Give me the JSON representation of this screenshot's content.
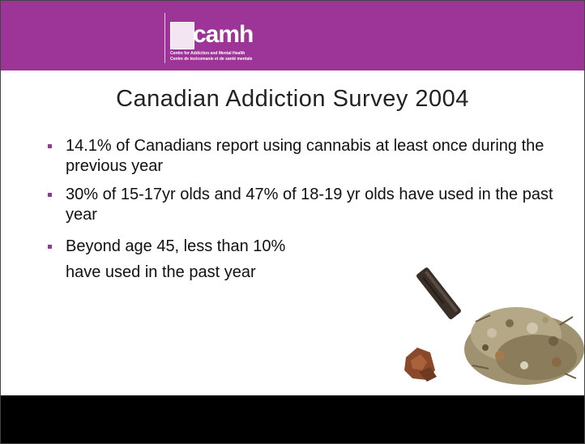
{
  "logo": {
    "wordmark": "camh",
    "line1": "Centre for Addiction and Mental Health",
    "line2": "Centre de toxicomanie et de santé mentale"
  },
  "slide": {
    "title": "Canadian Addiction Survey 2004",
    "bullets": [
      "14.1% of Canadians report using cannabis at least once during the previous year",
      "30% of 15-17yr olds and 47% of 18-19 yr olds have used in the past year",
      "Beyond age 45, less than 10% have used in the past year"
    ],
    "bullet3_line1": "Beyond age 45, less than 10%",
    "bullet3_line2": "have used in the past year"
  },
  "colors": {
    "banner": "#9c3597",
    "footer": "#000000",
    "bullet": "#9c3597"
  },
  "images": {
    "cannabis": "cannabis-photo-icon"
  }
}
